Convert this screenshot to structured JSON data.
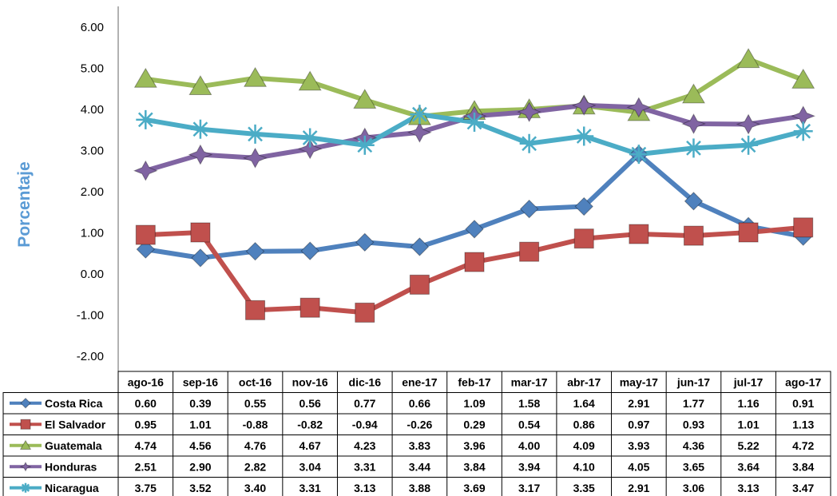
{
  "chart_data": {
    "type": "line",
    "title": "",
    "xlabel": "",
    "ylabel": "Porcentaje",
    "ylim": [
      -2.0,
      6.0
    ],
    "yticks": [
      "6.00",
      "5.00",
      "4.00",
      "3.00",
      "2.00",
      "1.00",
      "0.00",
      "-1.00",
      "-2.00"
    ],
    "grid": false,
    "legend": "data-table-below",
    "colors": {
      "ylabel": "#5b9bd5",
      "axis": "#7f7f7f",
      "table_border": "#000000"
    },
    "categories": [
      "ago-16",
      "sep-16",
      "oct-16",
      "nov-16",
      "dic-16",
      "ene-17",
      "feb-17",
      "mar-17",
      "abr-17",
      "may-17",
      "jun-17",
      "jul-17",
      "ago-17"
    ],
    "series": [
      {
        "name": "Costa Rica",
        "color": "#4f81bd",
        "marker": "diamond",
        "values": [
          0.6,
          0.39,
          0.55,
          0.56,
          0.77,
          0.66,
          1.09,
          1.58,
          1.64,
          2.91,
          1.77,
          1.16,
          0.91
        ],
        "labels": [
          "0.60",
          "0.39",
          "0.55",
          "0.56",
          "0.77",
          "0.66",
          "1.09",
          "1.58",
          "1.64",
          "2.91",
          "1.77",
          "1.16",
          "0.91"
        ]
      },
      {
        "name": "El Salvador",
        "color": "#c0504d",
        "marker": "square",
        "values": [
          0.95,
          1.01,
          -0.88,
          -0.82,
          -0.94,
          -0.26,
          0.29,
          0.54,
          0.86,
          0.97,
          0.93,
          1.01,
          1.13
        ],
        "labels": [
          "0.95",
          "1.01",
          "-0.88",
          "-0.82",
          "-0.94",
          "-0.26",
          "0.29",
          "0.54",
          "0.86",
          "0.97",
          "0.93",
          "1.01",
          "1.13"
        ]
      },
      {
        "name": "Guatemala",
        "color": "#9bbb59",
        "marker": "triangle",
        "values": [
          4.74,
          4.56,
          4.76,
          4.67,
          4.23,
          3.83,
          3.96,
          4.0,
          4.09,
          3.93,
          4.36,
          5.22,
          4.72
        ],
        "labels": [
          "4.74",
          "4.56",
          "4.76",
          "4.67",
          "4.23",
          "3.83",
          "3.96",
          "4.00",
          "4.09",
          "3.93",
          "4.36",
          "5.22",
          "4.72"
        ]
      },
      {
        "name": "Honduras",
        "color": "#8064a2",
        "marker": "star",
        "values": [
          2.51,
          2.9,
          2.82,
          3.04,
          3.31,
          3.44,
          3.84,
          3.94,
          4.1,
          4.05,
          3.65,
          3.64,
          3.84
        ],
        "labels": [
          "2.51",
          "2.90",
          "2.82",
          "3.04",
          "3.31",
          "3.44",
          "3.84",
          "3.94",
          "4.10",
          "4.05",
          "3.65",
          "3.64",
          "3.84"
        ]
      },
      {
        "name": "Nicaragua",
        "color": "#4bacc6",
        "marker": "asterisk",
        "values": [
          3.75,
          3.52,
          3.4,
          3.31,
          3.13,
          3.88,
          3.69,
          3.17,
          3.35,
          2.91,
          3.06,
          3.13,
          3.47
        ],
        "labels": [
          "3.75",
          "3.52",
          "3.40",
          "3.31",
          "3.13",
          "3.88",
          "3.69",
          "3.17",
          "3.35",
          "2.91",
          "3.06",
          "3.13",
          "3.47"
        ]
      }
    ]
  }
}
